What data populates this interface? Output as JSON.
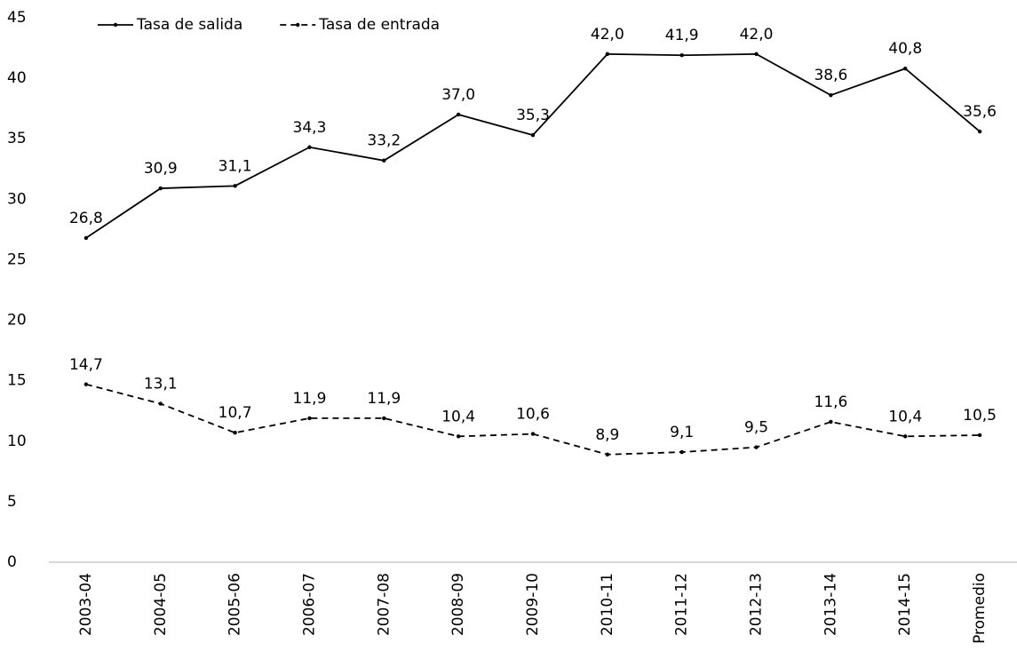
{
  "chart_data": {
    "type": "line",
    "categories": [
      "2003-04",
      "2004-05",
      "2005-06",
      "2006-07",
      "2007-08",
      "2008-09",
      "2009-10",
      "2010-11",
      "2011-12",
      "2012-13",
      "2013-14",
      "2014-15",
      "Promedio"
    ],
    "series": [
      {
        "name": "Tasa de salida",
        "color": "#000000",
        "line_style": "solid",
        "values": [
          26.8,
          30.9,
          31.1,
          34.3,
          33.2,
          37.0,
          35.3,
          42.0,
          41.9,
          42.0,
          38.6,
          40.8,
          35.6
        ],
        "value_labels": [
          "26,8",
          "30,9",
          "31,1",
          "34,3",
          "33,2",
          "37,0",
          "35,3",
          "42,0",
          "41,9",
          "42,0",
          "38,6",
          "40,8",
          "35,6"
        ]
      },
      {
        "name": "Tasa de entrada",
        "color": "#000000",
        "line_style": "dashed",
        "values": [
          14.7,
          13.1,
          10.7,
          11.9,
          11.9,
          10.4,
          10.6,
          8.9,
          9.1,
          9.5,
          11.6,
          10.4,
          10.5
        ],
        "value_labels": [
          "14,7",
          "13,1",
          "10,7",
          "11,9",
          "11,9",
          "10,4",
          "10,6",
          "8,9",
          "9,1",
          "9,5",
          "11,6",
          "10,4",
          "10,5"
        ]
      }
    ],
    "ylim": [
      0,
      45
    ],
    "yticks": [
      0,
      5,
      10,
      15,
      20,
      25,
      30,
      35,
      40,
      45
    ],
    "grid": false,
    "legend": "top-left"
  }
}
